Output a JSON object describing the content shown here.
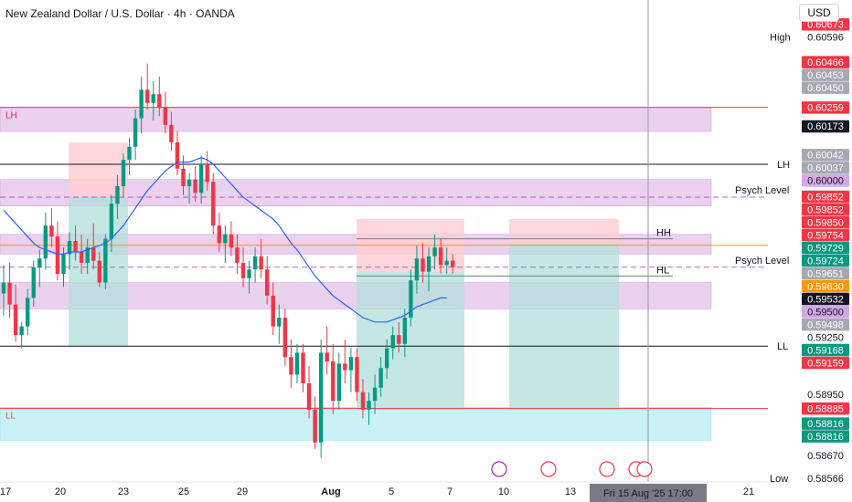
{
  "title": "New Zealand Dollar / U.S. Dollar · 4h · OANDA",
  "currency_button": "USD",
  "colors": {
    "up": "#089981",
    "down": "#f23645",
    "ma": "#2962ff",
    "zone_purple": "#e1bee7",
    "zone_cyan": "#b2ebf2",
    "pos_green": "#b2dfdb",
    "pos_red": "#ffcdd2",
    "orange_line": "#ff9800",
    "psych_line": "#9c27b0",
    "axis_text": "#131722"
  },
  "chart_data": {
    "type": "candlestick",
    "symbol": "NZDUSD",
    "timeframe": "4h",
    "ylim": [
      0.5855,
      0.6075
    ],
    "x_tick_labels": [
      "17",
      "20",
      "23",
      "25",
      "29",
      "Aug",
      "5",
      "7",
      "10",
      "13",
      "21"
    ],
    "crosshair_date_label": "Fri 15 Aug '25   17:00",
    "candles": [
      [
        0.5941,
        0.5954,
        0.5931,
        0.5946
      ],
      [
        0.5946,
        0.5955,
        0.593,
        0.5936
      ],
      [
        0.5936,
        0.5945,
        0.5919,
        0.5922
      ],
      [
        0.5922,
        0.5928,
        0.5916,
        0.5926
      ],
      [
        0.5926,
        0.5943,
        0.5922,
        0.5939
      ],
      [
        0.5939,
        0.5956,
        0.5935,
        0.5953
      ],
      [
        0.5953,
        0.5961,
        0.5944,
        0.5957
      ],
      [
        0.5957,
        0.5978,
        0.5952,
        0.5972
      ],
      [
        0.5972,
        0.598,
        0.5962,
        0.5967
      ],
      [
        0.5967,
        0.5974,
        0.5947,
        0.595
      ],
      [
        0.595,
        0.5962,
        0.5944,
        0.5959
      ],
      [
        0.5959,
        0.5969,
        0.5952,
        0.5965
      ],
      [
        0.5965,
        0.5972,
        0.5956,
        0.596
      ],
      [
        0.596,
        0.5968,
        0.595,
        0.5955
      ],
      [
        0.5955,
        0.5966,
        0.595,
        0.5962
      ],
      [
        0.5962,
        0.5973,
        0.5952,
        0.5956
      ],
      [
        0.5956,
        0.596,
        0.5944,
        0.5946
      ],
      [
        0.5946,
        0.5968,
        0.5943,
        0.5966
      ],
      [
        0.5966,
        0.5986,
        0.596,
        0.5982
      ],
      [
        0.5982,
        0.5995,
        0.5975,
        0.599
      ],
      [
        0.599,
        0.6005,
        0.5985,
        0.6002
      ],
      [
        0.6002,
        0.6012,
        0.5995,
        0.6008
      ],
      [
        0.6008,
        0.6025,
        0.6002,
        0.6021
      ],
      [
        0.6021,
        0.604,
        0.6014,
        0.6034
      ],
      [
        0.6034,
        0.6046,
        0.6025,
        0.6028
      ],
      [
        0.6028,
        0.6038,
        0.602,
        0.6032
      ],
      [
        0.6032,
        0.604,
        0.6022,
        0.6026
      ],
      [
        0.6026,
        0.6033,
        0.6014,
        0.6018
      ],
      [
        0.6018,
        0.6024,
        0.6006,
        0.601
      ],
      [
        0.601,
        0.6015,
        0.5995,
        0.5998
      ],
      [
        0.5998,
        0.6004,
        0.5986,
        0.599
      ],
      [
        0.599,
        0.5996,
        0.5982,
        0.5993
      ],
      [
        0.5993,
        0.5999,
        0.5983,
        0.5987
      ],
      [
        0.5987,
        0.6004,
        0.5982,
        0.6
      ],
      [
        0.6,
        0.6006,
        0.5988,
        0.5992
      ],
      [
        0.5992,
        0.5996,
        0.5968,
        0.5972
      ],
      [
        0.5972,
        0.5978,
        0.596,
        0.5964
      ],
      [
        0.5964,
        0.5972,
        0.5955,
        0.5968
      ],
      [
        0.5968,
        0.5974,
        0.5958,
        0.5962
      ],
      [
        0.5962,
        0.5968,
        0.595,
        0.5955
      ],
      [
        0.5955,
        0.5962,
        0.5944,
        0.5948
      ],
      [
        0.5948,
        0.5956,
        0.5941,
        0.5952
      ],
      [
        0.5952,
        0.5962,
        0.5946,
        0.5958
      ],
      [
        0.5958,
        0.5966,
        0.5948,
        0.5952
      ],
      [
        0.5952,
        0.5958,
        0.5936,
        0.594
      ],
      [
        0.594,
        0.5946,
        0.5922,
        0.5926
      ],
      [
        0.5926,
        0.5936,
        0.5918,
        0.593
      ],
      [
        0.593,
        0.5934,
        0.5908,
        0.5912
      ],
      [
        0.5912,
        0.592,
        0.5898,
        0.5904
      ],
      [
        0.5904,
        0.5918,
        0.59,
        0.5914
      ],
      [
        0.5914,
        0.5918,
        0.5896,
        0.59
      ],
      [
        0.59,
        0.5908,
        0.5884,
        0.5888
      ],
      [
        0.5888,
        0.5894,
        0.587,
        0.5873
      ],
      [
        0.5873,
        0.592,
        0.5866,
        0.5914
      ],
      [
        0.5914,
        0.5926,
        0.5904,
        0.591
      ],
      [
        0.591,
        0.5918,
        0.5886,
        0.5892
      ],
      [
        0.5892,
        0.5914,
        0.5888,
        0.5909
      ],
      [
        0.5909,
        0.592,
        0.59,
        0.5906
      ],
      [
        0.5906,
        0.5916,
        0.5896,
        0.5912
      ],
      [
        0.5912,
        0.5916,
        0.5892,
        0.5896
      ],
      [
        0.5896,
        0.5902,
        0.5884,
        0.5888
      ],
      [
        0.5888,
        0.5896,
        0.5881,
        0.5892
      ],
      [
        0.5892,
        0.5904,
        0.5886,
        0.5898
      ],
      [
        0.5898,
        0.5912,
        0.5894,
        0.5907
      ],
      [
        0.5907,
        0.592,
        0.5902,
        0.5916
      ],
      [
        0.5916,
        0.5926,
        0.5911,
        0.5922
      ],
      [
        0.5922,
        0.5928,
        0.5914,
        0.5918
      ],
      [
        0.5918,
        0.5934,
        0.5912,
        0.593
      ],
      [
        0.593,
        0.5952,
        0.5926,
        0.5947
      ],
      [
        0.5947,
        0.5963,
        0.5941,
        0.5957
      ],
      [
        0.5957,
        0.5964,
        0.5946,
        0.5951
      ],
      [
        0.5951,
        0.5962,
        0.5942,
        0.5958
      ],
      [
        0.5958,
        0.5968,
        0.5952,
        0.5962
      ],
      [
        0.5962,
        0.5966,
        0.595,
        0.5954
      ],
      [
        0.5954,
        0.5962,
        0.595,
        0.5956
      ],
      [
        0.5956,
        0.5959,
        0.595,
        0.5953
      ]
    ],
    "moving_average": [
      0.5979,
      0.5976,
      0.5973,
      0.597,
      0.5967,
      0.5964,
      0.5962,
      0.5961,
      0.596,
      0.5959,
      0.5959,
      0.596,
      0.596,
      0.596,
      0.5961,
      0.5962,
      0.5963,
      0.5964,
      0.5966,
      0.5969,
      0.5972,
      0.5976,
      0.598,
      0.5984,
      0.5988,
      0.5991,
      0.5994,
      0.5997,
      0.5999,
      0.6001,
      0.6001,
      0.6001,
      0.6002,
      0.6003,
      0.6002,
      0.6,
      0.5997,
      0.5994,
      0.5991,
      0.5988,
      0.5985,
      0.5983,
      0.5981,
      0.5979,
      0.5977,
      0.5975,
      0.5972,
      0.5968,
      0.5964,
      0.5961,
      0.5957,
      0.5953,
      0.5949,
      0.5946,
      0.5943,
      0.594,
      0.5938,
      0.5936,
      0.5934,
      0.5932,
      0.593,
      0.5929,
      0.5928,
      0.5928,
      0.5928,
      0.5929,
      0.593,
      0.5931,
      0.5933,
      0.5935,
      0.5936,
      0.5937,
      0.5938,
      0.5939,
      0.5939
    ],
    "horizontal_levels": [
      {
        "name": "LH",
        "price": 0.6,
        "color": "#131722",
        "label": "LH"
      },
      {
        "name": "LL",
        "price": 0.5917,
        "color": "#131722",
        "label": "LL"
      },
      {
        "name": "resistance",
        "price": 0.6026,
        "color": "#f23645",
        "label": ""
      },
      {
        "name": "support",
        "price": 0.58885,
        "color": "#f23645",
        "label": ""
      },
      {
        "name": "orange",
        "price": 0.5963,
        "color": "#ff9800",
        "label": ""
      }
    ],
    "psych_levels": [
      {
        "price": 0.5985,
        "label": "Psych Level"
      },
      {
        "price": 0.5953,
        "label": "Psych Level"
      }
    ],
    "zones": [
      {
        "label": "LH",
        "top": 0.6026,
        "bottom": 0.6015,
        "kind": "purple"
      },
      {
        "label": "",
        "top": 0.5993,
        "bottom": 0.5981,
        "kind": "purple"
      },
      {
        "label": "",
        "top": 0.5968,
        "bottom": 0.5959,
        "kind": "purple"
      },
      {
        "label": "",
        "top": 0.5946,
        "bottom": 0.5934,
        "kind": "purple"
      },
      {
        "label": "LL",
        "top": 0.5889,
        "bottom": 0.5874,
        "kind": "cyan"
      }
    ],
    "swing_labels": [
      {
        "label": "HH",
        "price": 0.5966
      },
      {
        "label": "HL",
        "price": 0.5949
      }
    ],
    "price_axis_labels": [
      {
        "text": "0.60673",
        "price": 0.60673,
        "bg": "#f23645",
        "fg": "#ffffff"
      },
      {
        "text": "0.60596",
        "price": 0.60596,
        "bg": "#ffffff",
        "fg": "#131722",
        "prefix": "High"
      },
      {
        "text": "0.60466",
        "price": 0.60466,
        "bg": "#f23645",
        "fg": "#ffffff"
      },
      {
        "text": "0.60453",
        "price": 0.60453,
        "bg": "#a6a9b3",
        "fg": "#ffffff"
      },
      {
        "text": "0.60450",
        "price": 0.6045,
        "bg": "#a6a9b3",
        "fg": "#ffffff"
      },
      {
        "text": "0.60259",
        "price": 0.60259,
        "bg": "#f23645",
        "fg": "#ffffff"
      },
      {
        "text": "0.60173",
        "price": 0.60173,
        "bg": "#131722",
        "fg": "#ffffff"
      },
      {
        "text": "0.60042",
        "price": 0.60042,
        "bg": "#a6a9b3",
        "fg": "#ffffff"
      },
      {
        "text": "0.60037",
        "price": 0.60037,
        "bg": "#a6a9b3",
        "fg": "#ffffff"
      },
      {
        "text": "0.60000",
        "price": 0.6,
        "bg": "#d5a6e6",
        "fg": "#131722"
      },
      {
        "text": "0.59852",
        "price": 0.59852,
        "bg": "#f23645",
        "fg": "#ffffff"
      },
      {
        "text": "0.59852",
        "price": 0.59852,
        "bg": "#f23645",
        "fg": "#ffffff"
      },
      {
        "text": "0.59850",
        "price": 0.5985,
        "bg": "#f23645",
        "fg": "#ffffff"
      },
      {
        "text": "0.59754",
        "price": 0.59754,
        "bg": "#f23645",
        "fg": "#ffffff"
      },
      {
        "text": "0.59729",
        "price": 0.59729,
        "bg": "#089981",
        "fg": "#ffffff"
      },
      {
        "text": "0.59724",
        "price": 0.59724,
        "bg": "#089981",
        "fg": "#ffffff"
      },
      {
        "text": "0.59651",
        "price": 0.59651,
        "bg": "#a6a9b3",
        "fg": "#ffffff"
      },
      {
        "text": "0.59630",
        "price": 0.5963,
        "bg": "#ff9800",
        "fg": "#ffffff"
      },
      {
        "text": "0.59532",
        "price": 0.59532,
        "bg": "#131722",
        "fg": "#ffffff"
      },
      {
        "text": "0.59500",
        "price": 0.595,
        "bg": "#d5a6e6",
        "fg": "#131722"
      },
      {
        "text": "0.59498",
        "price": 0.59498,
        "bg": "#a6a9b3",
        "fg": "#ffffff"
      },
      {
        "text": "0.59250",
        "price": 0.5925,
        "bg": "#ffffff",
        "fg": "#131722"
      },
      {
        "text": "0.59168",
        "price": 0.59168,
        "bg": "#089981",
        "fg": "#ffffff"
      },
      {
        "text": "0.59159",
        "price": 0.59159,
        "bg": "#f23645",
        "fg": "#ffffff"
      },
      {
        "text": "0.58950",
        "price": 0.5895,
        "bg": "#ffffff",
        "fg": "#131722"
      },
      {
        "text": "0.58885",
        "price": 0.58885,
        "bg": "#f23645",
        "fg": "#ffffff"
      },
      {
        "text": "0.58816",
        "price": 0.58816,
        "bg": "#089981",
        "fg": "#ffffff"
      },
      {
        "text": "0.58816",
        "price": 0.58816,
        "bg": "#089981",
        "fg": "#ffffff"
      },
      {
        "text": "0.58670",
        "price": 0.5867,
        "bg": "#ffffff",
        "fg": "#131722"
      },
      {
        "text": "0.58566",
        "price": 0.58566,
        "bg": "#ffffff",
        "fg": "#131722",
        "prefix": "Low"
      }
    ]
  }
}
